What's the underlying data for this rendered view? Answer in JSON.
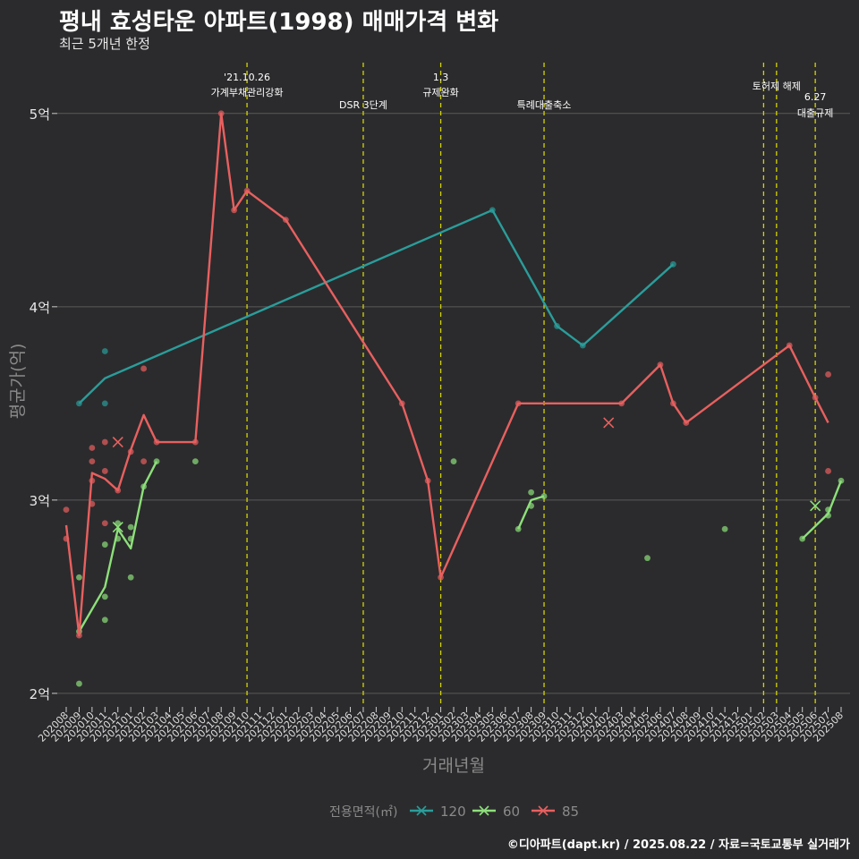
{
  "title": "평내 효성타운 아파트(1998) 매매가격 변화",
  "subtitle": "최근 5개년 한정",
  "caption": "©디아파트(dapt.kr) / 2025.08.22 / 자료=국토교통부 실거래가",
  "colors": {
    "background": "#2b2b2d",
    "grid": "#5a5a5a",
    "event_line": "#d4d400",
    "s120": "#2a9d9a",
    "s60": "#8de07a",
    "s85": "#e8605f",
    "text": "#eeeeee",
    "axis_label": "#8a8a8a"
  },
  "chart_data": {
    "type": "line",
    "title": "평내 효성타운 아파트(1998) 매매가격 변화",
    "subtitle": "최근 5개년 한정",
    "xlabel": "거래년월",
    "ylabel": "평균가(억)",
    "ylim": [
      1.93,
      5.3
    ],
    "yticks": [
      {
        "v": 2,
        "label": "2억"
      },
      {
        "v": 3,
        "label": "3억"
      },
      {
        "v": 4,
        "label": "4억"
      },
      {
        "v": 5,
        "label": "5억"
      }
    ],
    "x_categories": [
      "202008",
      "202009",
      "202010",
      "202011",
      "202012",
      "202101",
      "202102",
      "202103",
      "202104",
      "202105",
      "202106",
      "202107",
      "202108",
      "202109",
      "202110",
      "202111",
      "202112",
      "202201",
      "202202",
      "202203",
      "202204",
      "202205",
      "202206",
      "202207",
      "202208",
      "202209",
      "202210",
      "202211",
      "202212",
      "202301",
      "202302",
      "202303",
      "202304",
      "202305",
      "202306",
      "202307",
      "202308",
      "202309",
      "202310",
      "202311",
      "202312",
      "202401",
      "202402",
      "202403",
      "202404",
      "202405",
      "202406",
      "202407",
      "202408",
      "202409",
      "202410",
      "202411",
      "202412",
      "202501",
      "202502",
      "202503",
      "202504",
      "202505",
      "202506",
      "202507",
      "202508"
    ],
    "legend": {
      "title": "전용면적(㎡)",
      "position": "bottom",
      "entries": [
        "120",
        "60",
        "85"
      ]
    },
    "grid": true,
    "events": [
      {
        "x": 202110.0,
        "label": "'21.10.26\n가계부채관리강화",
        "row": 0
      },
      {
        "x": 202207.0,
        "label": "DSR 3단계",
        "row": 1
      },
      {
        "x": 202301.0,
        "label": "1.3\n규제완화",
        "row": 0
      },
      {
        "x": 202309.0,
        "label": "특례대출축소",
        "row": 1
      },
      {
        "x": 202502.0,
        "label": "",
        "row": 0
      },
      {
        "x": 202503.0,
        "label": "토허제 해제",
        "row": 0
      },
      {
        "x": 202506.0,
        "label": "6.27\n대출규제",
        "row": 2
      }
    ],
    "series": [
      {
        "name": "120",
        "color": "#2a9d9a",
        "line": [
          [
            "202009",
            3.5
          ],
          [
            "202011",
            3.63
          ],
          [
            "202305",
            4.5
          ],
          [
            "202310",
            3.9
          ],
          [
            "202312",
            3.8
          ],
          [
            "202407",
            4.22
          ]
        ],
        "points": [
          [
            "202009",
            3.5
          ],
          [
            "202011",
            3.77
          ],
          [
            "202011",
            3.5
          ],
          [
            "202305",
            4.5
          ],
          [
            "202310",
            3.9
          ],
          [
            "202312",
            3.8
          ],
          [
            "202407",
            4.22
          ]
        ],
        "cross": []
      },
      {
        "name": "60",
        "color": "#8de07a",
        "line": [
          [
            "202009",
            2.32
          ],
          [
            "202011",
            2.55
          ],
          [
            "202012",
            2.85
          ],
          [
            "202101",
            2.75
          ],
          [
            "202102",
            3.07
          ],
          [
            "202103",
            3.2
          ]
        ],
        "line2": [
          [
            "202307",
            2.85
          ],
          [
            "202308",
            3.0
          ],
          [
            "202309",
            3.02
          ]
        ],
        "line3": [
          [
            "202505",
            2.8
          ],
          [
            "202507",
            2.93
          ],
          [
            "202508",
            3.1
          ]
        ],
        "points": [
          [
            "202009",
            2.05
          ],
          [
            "202009",
            2.6
          ],
          [
            "202009",
            2.32
          ],
          [
            "202011",
            2.5
          ],
          [
            "202011",
            2.77
          ],
          [
            "202011",
            2.38
          ],
          [
            "202012",
            2.88
          ],
          [
            "202012",
            2.8
          ],
          [
            "202101",
            2.86
          ],
          [
            "202101",
            2.8
          ],
          [
            "202101",
            2.6
          ],
          [
            "202102",
            3.07
          ],
          [
            "202103",
            3.2
          ],
          [
            "202106",
            3.2
          ],
          [
            "202302",
            3.2
          ],
          [
            "202307",
            2.85
          ],
          [
            "202308",
            3.04
          ],
          [
            "202308",
            2.97
          ],
          [
            "202309",
            3.02
          ],
          [
            "202405",
            2.7
          ],
          [
            "202411",
            2.85
          ],
          [
            "202505",
            2.8
          ],
          [
            "202507",
            2.95
          ],
          [
            "202507",
            2.92
          ],
          [
            "202508",
            3.1
          ]
        ],
        "cross": [
          [
            "202012",
            2.86
          ],
          [
            "202506",
            2.97
          ]
        ]
      },
      {
        "name": "85",
        "color": "#e8605f",
        "line": [
          [
            "202008",
            2.87
          ],
          [
            "202009",
            2.3
          ],
          [
            "202010",
            3.14
          ],
          [
            "202011",
            3.11
          ],
          [
            "202012",
            3.05
          ],
          [
            "202101",
            3.26
          ],
          [
            "202102",
            3.44
          ],
          [
            "202103",
            3.3
          ],
          [
            "202106",
            3.3
          ],
          [
            "202108",
            5.0
          ],
          [
            "202109",
            4.5
          ],
          [
            "202110",
            4.6
          ],
          [
            "202201",
            4.45
          ],
          [
            "202210",
            3.5
          ],
          [
            "202212",
            3.1
          ],
          [
            "202301",
            2.6
          ],
          [
            "202307",
            3.5
          ],
          [
            "202403",
            3.5
          ],
          [
            "202406",
            3.7
          ],
          [
            "202407",
            3.5
          ],
          [
            "202408",
            3.4
          ],
          [
            "202504",
            3.8
          ],
          [
            "202506",
            3.53
          ],
          [
            "202507",
            3.4
          ]
        ],
        "points": [
          [
            "202008",
            2.95
          ],
          [
            "202008",
            2.8
          ],
          [
            "202009",
            2.3
          ],
          [
            "202010",
            3.1
          ],
          [
            "202010",
            2.98
          ],
          [
            "202010",
            3.27
          ],
          [
            "202010",
            3.2
          ],
          [
            "202011",
            3.3
          ],
          [
            "202011",
            3.15
          ],
          [
            "202011",
            2.88
          ],
          [
            "202012",
            3.05
          ],
          [
            "202101",
            3.25
          ],
          [
            "202102",
            3.68
          ],
          [
            "202102",
            3.2
          ],
          [
            "202103",
            3.3
          ],
          [
            "202106",
            3.3
          ],
          [
            "202108",
            5.0
          ],
          [
            "202109",
            4.5
          ],
          [
            "202110",
            4.6
          ],
          [
            "202201",
            4.45
          ],
          [
            "202210",
            3.5
          ],
          [
            "202212",
            3.1
          ],
          [
            "202301",
            2.6
          ],
          [
            "202307",
            3.5
          ],
          [
            "202403",
            3.5
          ],
          [
            "202406",
            3.7
          ],
          [
            "202407",
            3.5
          ],
          [
            "202408",
            3.4
          ],
          [
            "202504",
            3.8
          ],
          [
            "202506",
            3.53
          ],
          [
            "202507",
            3.65
          ],
          [
            "202507",
            3.15
          ]
        ],
        "cross": [
          [
            "202012",
            3.3
          ],
          [
            "202402",
            3.4
          ]
        ]
      }
    ]
  }
}
